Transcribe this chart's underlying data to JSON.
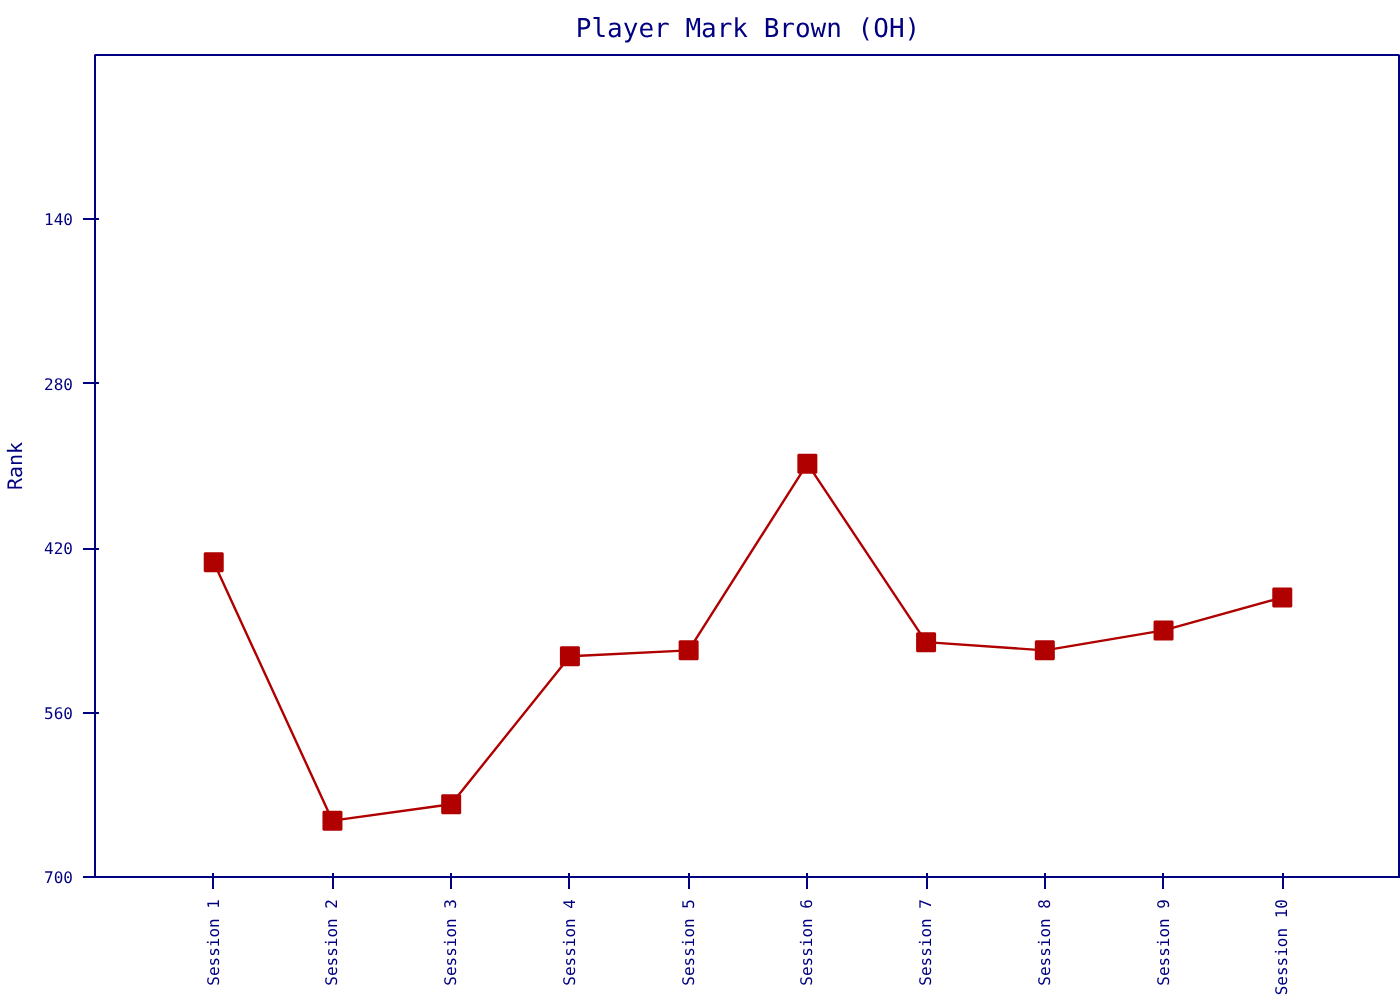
{
  "chart_data": {
    "type": "line",
    "title": "Player Mark Brown (OH)",
    "ylabel": "Rank",
    "categories": [
      "Session 1",
      "Session 2",
      "Session 3",
      "Session 4",
      "Session 5",
      "Session 6",
      "Session 7",
      "Session 8",
      "Session 9",
      "Session 10"
    ],
    "series": [
      {
        "color": "#b00000",
        "values": [
          432,
          652,
          638,
          512,
          507,
          348,
          500,
          507,
          490,
          462
        ]
      }
    ],
    "ylim": [
      700,
      0
    ],
    "yticks": [
      140,
      280,
      420,
      560,
      700
    ],
    "grid": false,
    "marker": "square",
    "line_style": "solid"
  }
}
